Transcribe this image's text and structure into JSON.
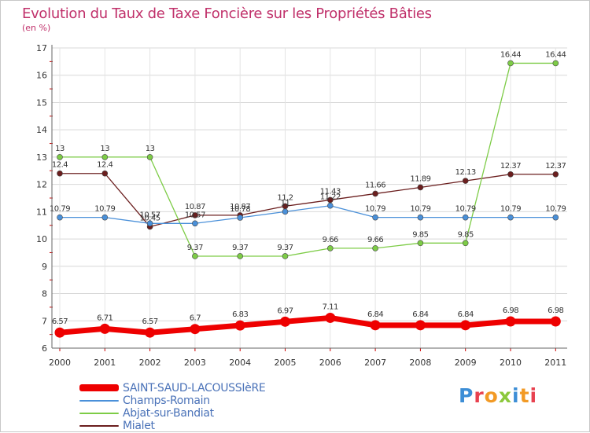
{
  "title": "Evolution du Taux de Taxe Foncière sur les Propriétés Bâties",
  "unit": "(en %)",
  "logo": "Proxiti",
  "chart_data": {
    "type": "line",
    "x": [
      "2000",
      "2001",
      "2002",
      "2003",
      "2004",
      "2005",
      "2006",
      "2007",
      "2008",
      "2009",
      "2010",
      "2011"
    ],
    "ylim": [
      6,
      17
    ],
    "yticks": [
      "6",
      "7",
      "8",
      "9",
      "10",
      "11",
      "12",
      "13",
      "14",
      "15",
      "16",
      "17"
    ],
    "grid": true,
    "legend_position": "bottom-left",
    "series": [
      {
        "name": "SAINT-SAUD-LACOUSSIèRE",
        "color": "#ee0000",
        "values": [
          6.57,
          6.71,
          6.57,
          6.7,
          6.83,
          6.97,
          7.11,
          6.84,
          6.84,
          6.84,
          6.98,
          6.98
        ],
        "labels": [
          "6.57",
          "6.71",
          "6.57",
          "6.7",
          "6.83",
          "6.97",
          "7.11",
          "6.84",
          "6.84",
          "6.84",
          "6.98",
          "6.98"
        ]
      },
      {
        "name": "Champs-Romain",
        "color": "#4a90d9",
        "values": [
          10.79,
          10.79,
          10.57,
          10.57,
          10.78,
          11,
          11.22,
          10.79,
          10.79,
          10.79,
          10.79,
          10.79
        ],
        "labels": [
          "10.79",
          "10.79",
          "10.57",
          "10.57",
          "10.78",
          "11",
          "11.22",
          "10.79",
          "10.79",
          "10.79",
          "10.79",
          "10.79"
        ]
      },
      {
        "name": "Abjat-sur-Bandiat",
        "color": "#7dcc46",
        "values": [
          13,
          13,
          13,
          9.37,
          9.37,
          9.37,
          9.66,
          9.66,
          9.85,
          9.85,
          16.44,
          16.44
        ],
        "labels": [
          "13",
          "13",
          "13",
          "9.37",
          "9.37",
          "9.37",
          "9.66",
          "9.66",
          "9.85",
          "9.85",
          "16.44",
          "16.44"
        ]
      },
      {
        "name": "Mialet",
        "color": "#6b1e1e",
        "values": [
          12.4,
          12.4,
          10.45,
          10.87,
          10.87,
          11.2,
          11.43,
          11.66,
          11.89,
          12.13,
          12.37,
          12.37
        ],
        "labels": [
          "12.4",
          "12.4",
          "10.45",
          "10.87",
          "10.87",
          "11.2",
          "11.43",
          "11.66",
          "11.89",
          "12.13",
          "12.37",
          "12.37"
        ]
      }
    ]
  }
}
